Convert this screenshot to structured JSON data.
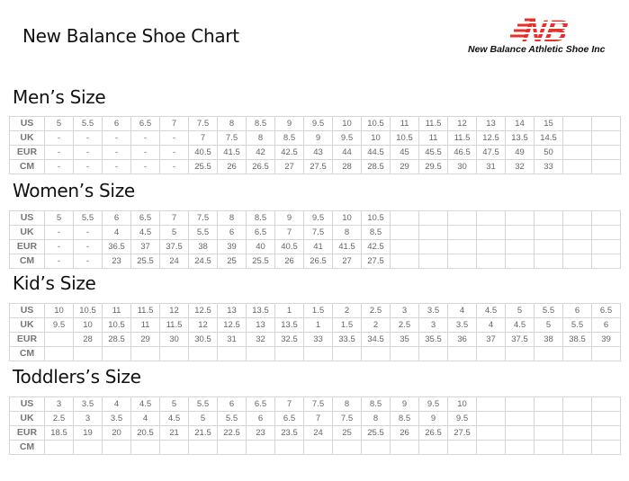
{
  "header": {
    "title": "New Balance Shoe Chart",
    "logo_text": "New Balance Athletic Shoe Inc",
    "logo_letters": "NB",
    "brand_color": "#e8302a"
  },
  "sections": [
    {
      "title": "Men’s Size",
      "rows": [
        {
          "label": "US",
          "values": [
            "5",
            "5.5",
            "6",
            "6.5",
            "7",
            "7.5",
            "8",
            "8.5",
            "9",
            "9.5",
            "10",
            "10.5",
            "11",
            "11.5",
            "12",
            "13",
            "14",
            "15",
            "",
            ""
          ]
        },
        {
          "label": "UK",
          "values": [
            "-",
            "-",
            "-",
            "-",
            "-",
            "7",
            "7.5",
            "8",
            "8.5",
            "9",
            "9.5",
            "10",
            "10.5",
            "11",
            "11.5",
            "12.5",
            "13.5",
            "14.5",
            "",
            ""
          ]
        },
        {
          "label": "EUR",
          "values": [
            "-",
            "-",
            "-",
            "-",
            "-",
            "40.5",
            "41.5",
            "42",
            "42.5",
            "43",
            "44",
            "44.5",
            "45",
            "45.5",
            "46.5",
            "47.5",
            "49",
            "50",
            "",
            ""
          ]
        },
        {
          "label": "CM",
          "values": [
            "-",
            "-",
            "-",
            "-",
            "-",
            "25.5",
            "26",
            "26.5",
            "27",
            "27.5",
            "28",
            "28.5",
            "29",
            "29.5",
            "30",
            "31",
            "32",
            "33",
            "",
            ""
          ]
        }
      ]
    },
    {
      "title": "Women’s Size",
      "rows": [
        {
          "label": "US",
          "values": [
            "5",
            "5.5",
            "6",
            "6.5",
            "7",
            "7.5",
            "8",
            "8.5",
            "9",
            "9.5",
            "10",
            "10.5",
            "",
            "",
            "",
            "",
            "",
            "",
            "",
            ""
          ]
        },
        {
          "label": "UK",
          "values": [
            "-",
            "-",
            "4",
            "4.5",
            "5",
            "5.5",
            "6",
            "6.5",
            "7",
            "7.5",
            "8",
            "8.5",
            "",
            "",
            "",
            "",
            "",
            "",
            "",
            ""
          ]
        },
        {
          "label": "EUR",
          "values": [
            "-",
            "-",
            "36.5",
            "37",
            "37.5",
            "38",
            "39",
            "40",
            "40.5",
            "41",
            "41.5",
            "42.5",
            "",
            "",
            "",
            "",
            "",
            "",
            "",
            ""
          ]
        },
        {
          "label": "CM",
          "values": [
            "-",
            "-",
            "23",
            "25.5",
            "24",
            "24.5",
            "25",
            "25.5",
            "26",
            "26.5",
            "27",
            "27.5",
            "",
            "",
            "",
            "",
            "",
            "",
            "",
            ""
          ]
        }
      ]
    },
    {
      "title": "Kid’s Size",
      "rows": [
        {
          "label": "US",
          "values": [
            "10",
            "10.5",
            "11",
            "11.5",
            "12",
            "12.5",
            "13",
            "13.5",
            "1",
            "1.5",
            "2",
            "2.5",
            "3",
            "3.5",
            "4",
            "4.5",
            "5",
            "5.5",
            "6",
            "6.5"
          ]
        },
        {
          "label": "UK",
          "values": [
            "9.5",
            "10",
            "10.5",
            "11",
            "11.5",
            "12",
            "12.5",
            "13",
            "13.5",
            "1",
            "1.5",
            "2",
            "2.5",
            "3",
            "3.5",
            "4",
            "4.5",
            "5",
            "5.5",
            "6"
          ]
        },
        {
          "label": "EUR",
          "values": [
            "",
            "28",
            "28.5",
            "29",
            "30",
            "30.5",
            "31",
            "32",
            "32.5",
            "33",
            "33.5",
            "34.5",
            "35",
            "35.5",
            "36",
            "37",
            "37.5",
            "38",
            "38.5",
            "39"
          ]
        },
        {
          "label": "CM",
          "values": [
            "",
            "",
            "",
            "",
            "",
            "",
            "",
            "",
            "",
            "",
            "",
            "",
            "",
            "",
            "",
            "",
            "",
            "",
            "",
            ""
          ]
        }
      ]
    },
    {
      "title": "Toddlers’s Size",
      "rows": [
        {
          "label": "US",
          "values": [
            "3",
            "3.5",
            "4",
            "4.5",
            "5",
            "5.5",
            "6",
            "6.5",
            "7",
            "7.5",
            "8",
            "8.5",
            "9",
            "9.5",
            "10",
            "",
            "",
            "",
            "",
            ""
          ]
        },
        {
          "label": "UK",
          "values": [
            "2.5",
            "3",
            "3.5",
            "4",
            "4.5",
            "5",
            "5.5",
            "6",
            "6.5",
            "7",
            "7.5",
            "8",
            "8.5",
            "9",
            "9.5",
            "",
            "",
            "",
            "",
            ""
          ]
        },
        {
          "label": "EUR",
          "values": [
            "18.5",
            "19",
            "20",
            "20.5",
            "21",
            "21.5",
            "22.5",
            "23",
            "23.5",
            "24",
            "25",
            "25.5",
            "26",
            "26.5",
            "27.5",
            "",
            "",
            "",
            "",
            ""
          ]
        },
        {
          "label": "CM",
          "values": [
            "",
            "",
            "",
            "",
            "",
            "",
            "",
            "",
            "",
            "",
            "",
            "",
            "",
            "",
            "",
            "",
            "",
            "",
            "",
            ""
          ]
        }
      ]
    }
  ]
}
